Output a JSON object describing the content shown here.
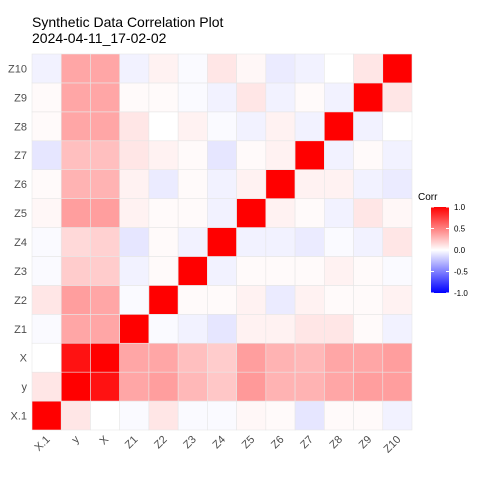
{
  "chart_data": {
    "type": "heatmap",
    "title": "Synthetic Data Correlation Plot",
    "subtitle": "2024-04-11_17-02-02",
    "xlabel": "",
    "ylabel": "",
    "x_categories": [
      "X.1",
      "y",
      "X",
      "Z1",
      "Z2",
      "Z3",
      "Z4",
      "Z5",
      "Z6",
      "Z7",
      "Z8",
      "Z9",
      "Z10"
    ],
    "y_categories": [
      "X.1",
      "y",
      "X",
      "Z1",
      "Z2",
      "Z3",
      "Z4",
      "Z5",
      "Z6",
      "Z7",
      "Z8",
      "Z9",
      "Z10"
    ],
    "values": [
      [
        1.0,
        0.1,
        0.0,
        -0.02,
        0.1,
        -0.02,
        -0.02,
        0.03,
        0.02,
        -0.1,
        0.02,
        0.02,
        -0.05
      ],
      [
        0.1,
        1.0,
        0.93,
        0.35,
        0.38,
        0.28,
        0.22,
        0.4,
        0.3,
        0.3,
        0.35,
        0.38,
        0.38
      ],
      [
        0.0,
        0.93,
        1.0,
        0.35,
        0.35,
        0.25,
        0.2,
        0.38,
        0.3,
        0.28,
        0.35,
        0.35,
        0.38
      ],
      [
        -0.02,
        0.35,
        0.35,
        1.0,
        -0.02,
        -0.05,
        -0.1,
        0.05,
        0.05,
        0.1,
        0.1,
        0.02,
        -0.05
      ],
      [
        0.1,
        0.38,
        0.35,
        -0.02,
        1.0,
        0.02,
        0.02,
        0.05,
        -0.08,
        0.05,
        0.02,
        0.02,
        0.05
      ],
      [
        -0.02,
        0.2,
        0.2,
        -0.05,
        0.02,
        1.0,
        -0.05,
        0.02,
        0.02,
        0.02,
        0.05,
        0.02,
        -0.02
      ],
      [
        -0.02,
        0.15,
        0.18,
        -0.1,
        0.02,
        -0.05,
        1.0,
        -0.05,
        -0.05,
        -0.08,
        -0.02,
        -0.05,
        0.1
      ],
      [
        0.03,
        0.38,
        0.38,
        0.05,
        0.02,
        0.02,
        -0.05,
        1.0,
        0.05,
        0.02,
        -0.05,
        0.1,
        0.03
      ],
      [
        0.02,
        0.3,
        0.3,
        0.05,
        -0.08,
        0.02,
        -0.05,
        0.05,
        1.0,
        0.05,
        0.05,
        -0.05,
        -0.08
      ],
      [
        -0.1,
        0.25,
        0.25,
        0.1,
        0.05,
        0.02,
        -0.1,
        0.02,
        0.05,
        1.0,
        -0.05,
        0.02,
        -0.05
      ],
      [
        0.02,
        0.35,
        0.35,
        0.1,
        0.0,
        0.05,
        -0.02,
        -0.05,
        0.05,
        -0.05,
        1.0,
        -0.05,
        0.0
      ],
      [
        0.02,
        0.35,
        0.35,
        0.02,
        0.02,
        -0.02,
        -0.05,
        0.1,
        -0.05,
        0.02,
        -0.05,
        1.0,
        0.1
      ],
      [
        -0.05,
        0.35,
        0.35,
        -0.05,
        0.05,
        -0.02,
        0.1,
        0.03,
        -0.08,
        -0.05,
        0.0,
        0.1,
        1.0
      ]
    ],
    "color_scale": {
      "title": "Corr",
      "domain": [
        -1,
        1
      ],
      "low_color": "#0000ff",
      "mid_color": "#ffffff",
      "high_color": "#ff0000",
      "ticks": [
        "1.0",
        "0.5",
        "0.0",
        "-0.5",
        "-1.0"
      ],
      "tick_values": [
        1.0,
        0.5,
        0.0,
        -0.5,
        -1.0
      ]
    },
    "grid": false,
    "legend_position": "right"
  }
}
